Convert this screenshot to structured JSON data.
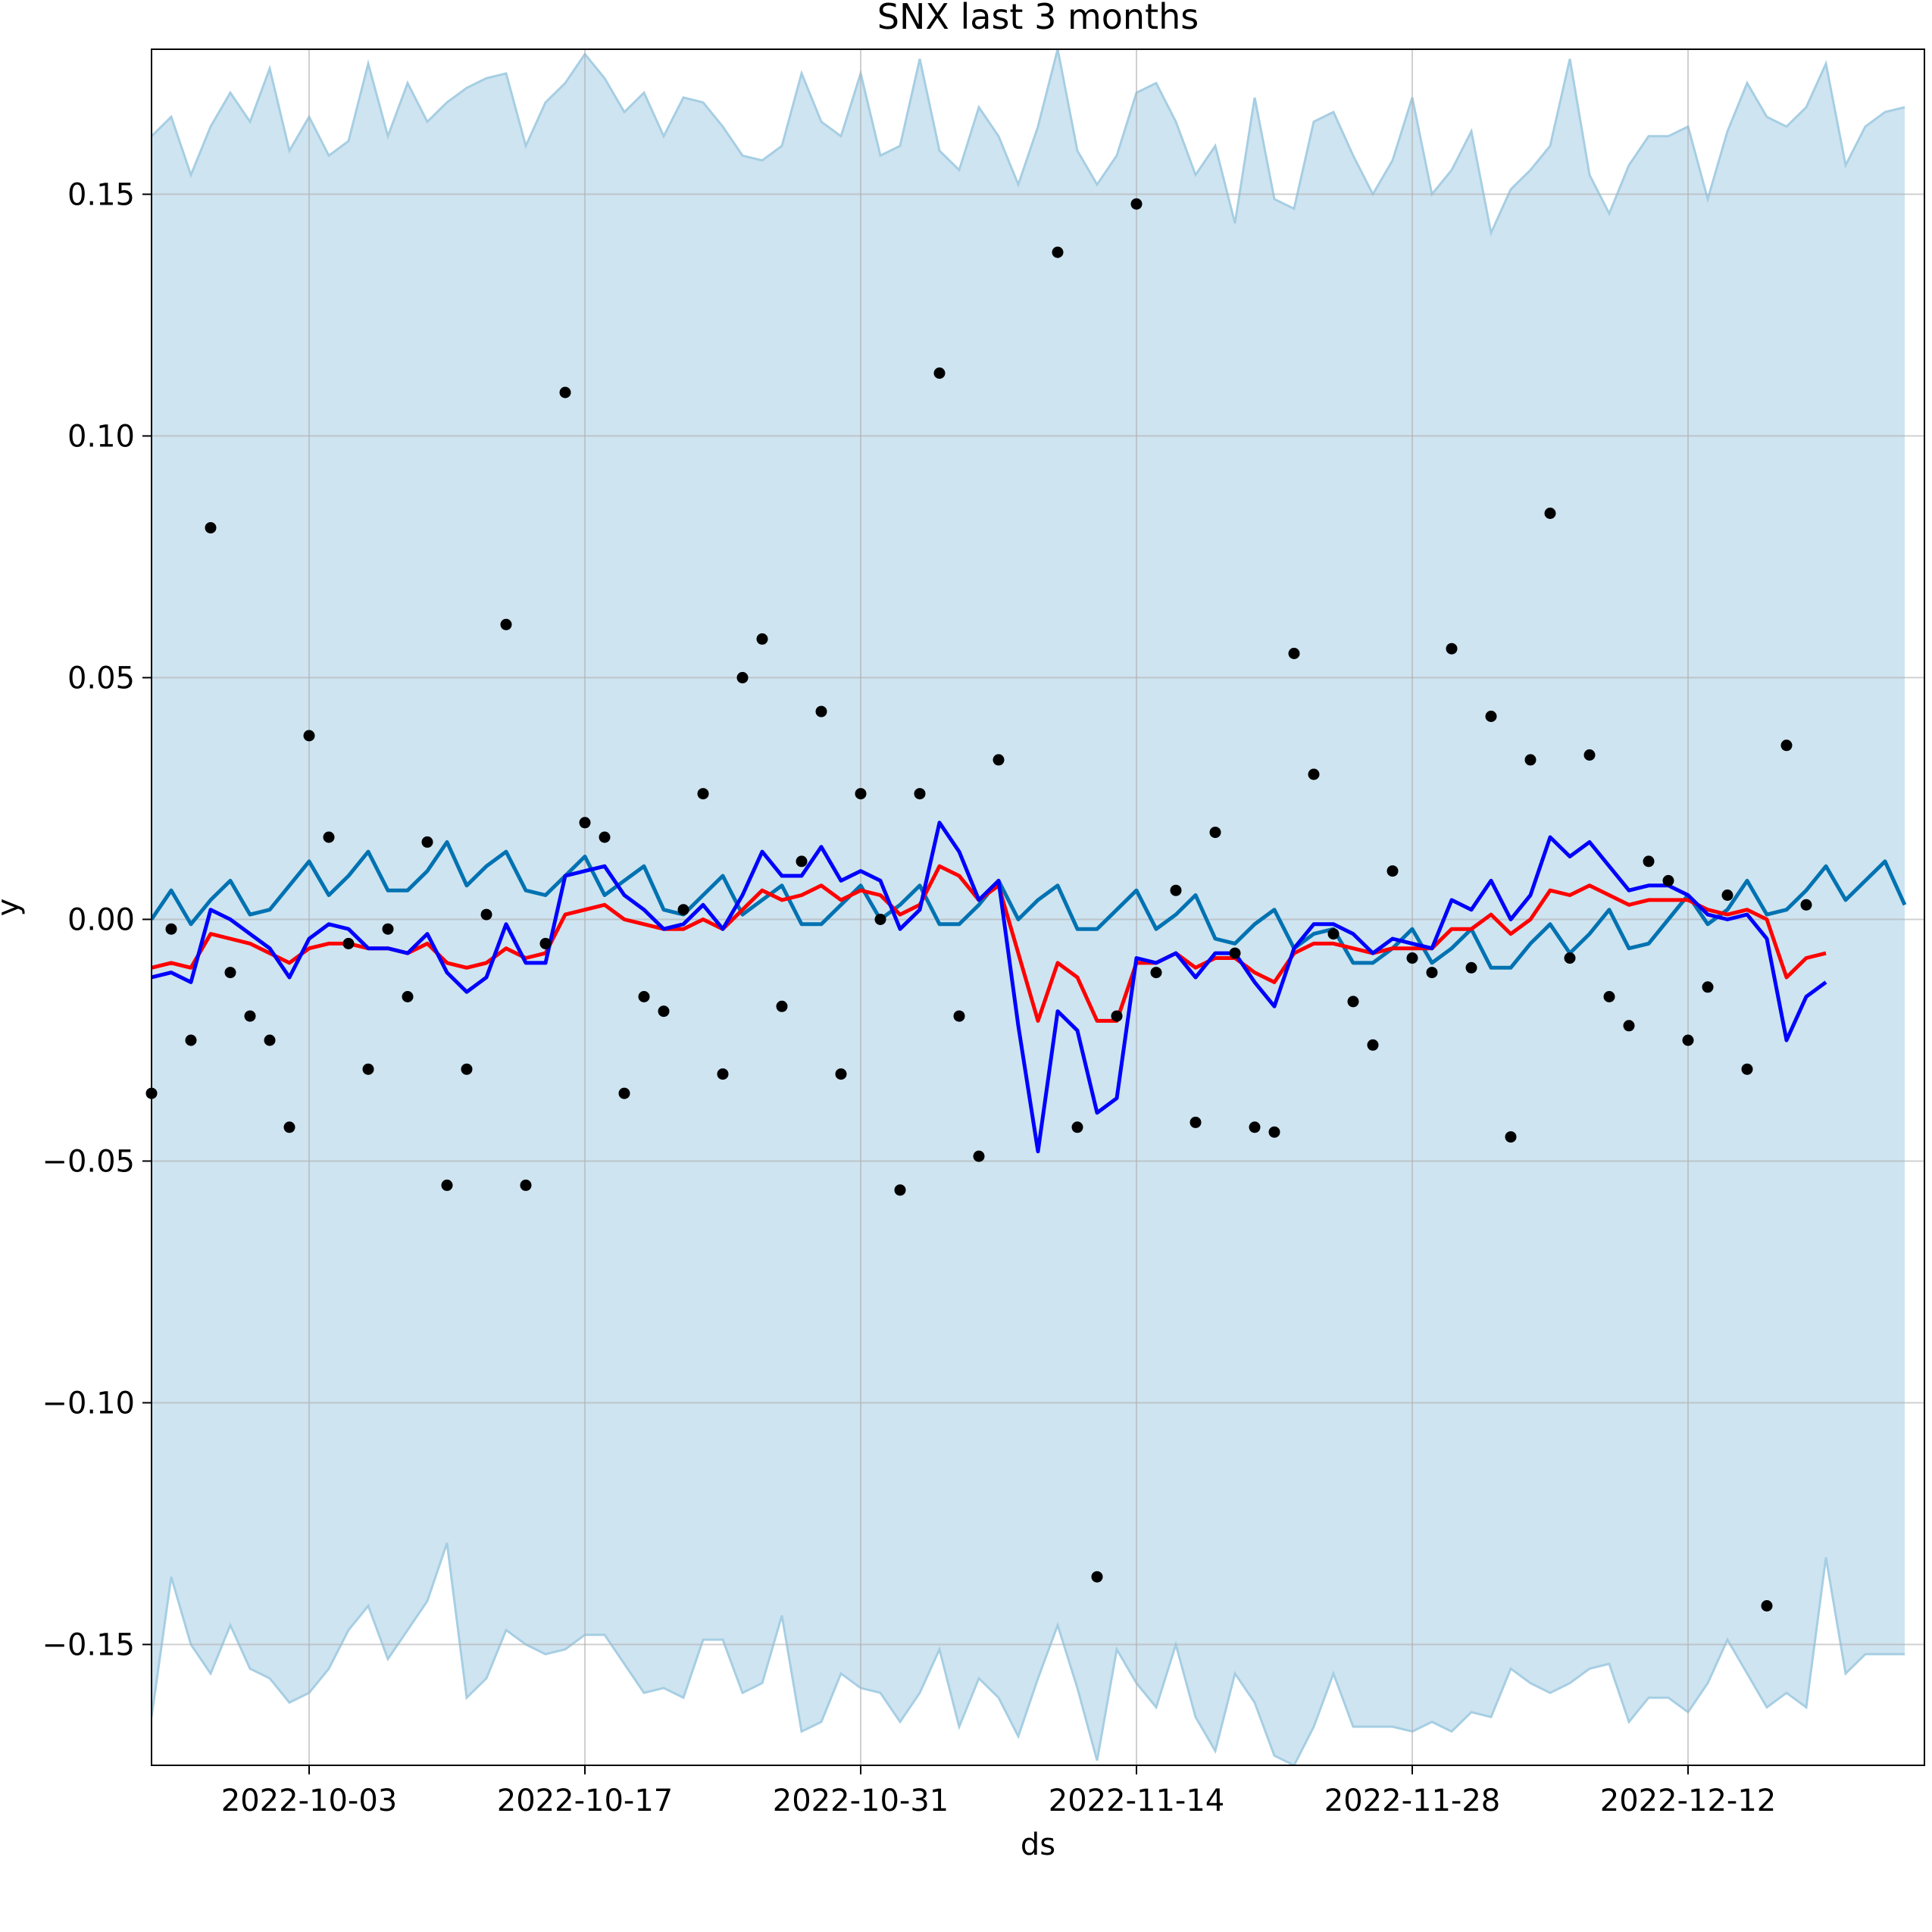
{
  "chart_data": {
    "type": "line",
    "title": "SNX last 3 months",
    "xlabel": "ds",
    "ylabel": "y",
    "x_start": "2022-09-25",
    "xlim": [
      "2022-09-25",
      "2022-12-24"
    ],
    "ylim": [
      -0.175,
      0.18
    ],
    "grid": true,
    "x_ticks": [
      "2022-10-03",
      "2022-10-17",
      "2022-10-31",
      "2022-11-14",
      "2022-11-28",
      "2022-12-12"
    ],
    "y_ticks": [
      0.15,
      0.1,
      0.05,
      0.0,
      -0.05,
      -0.1,
      -0.15
    ],
    "y_tick_labels": [
      "0.15",
      "0.10",
      "0.05",
      "0.00",
      "−0.05",
      "−0.10",
      "−0.15"
    ],
    "colors": {
      "band": "#a6cee3",
      "forecast": "#0072b2",
      "red_line": "#ff0000",
      "blue_line": "#0000ff",
      "points": "#000000",
      "grid": "#b0b0b0"
    },
    "band_upper": [
      0.162,
      0.166,
      0.154,
      0.164,
      0.171,
      0.165,
      0.176,
      0.159,
      0.166,
      0.158,
      0.161,
      0.177,
      0.162,
      0.173,
      0.165,
      0.169,
      0.172,
      0.174,
      0.175,
      0.16,
      0.169,
      0.173,
      0.179,
      0.174,
      0.167,
      0.171,
      0.162,
      0.17,
      0.169,
      0.164,
      0.158,
      0.157,
      0.16,
      0.175,
      0.165,
      0.162,
      0.175,
      0.158,
      0.16,
      0.178,
      0.159,
      0.155,
      0.168,
      0.162,
      0.152,
      0.164,
      0.18,
      0.159,
      0.152,
      0.158,
      0.171,
      0.173,
      0.165,
      0.154,
      0.16,
      0.144,
      0.17,
      0.149,
      0.147,
      0.165,
      0.167,
      0.158,
      0.15,
      0.157,
      0.17,
      0.15,
      0.155,
      0.163,
      0.142,
      0.151,
      0.155,
      0.16,
      0.178,
      0.154,
      0.146,
      0.156,
      0.162,
      0.162,
      0.164,
      0.149,
      0.163,
      0.173,
      0.166,
      0.164,
      0.168,
      0.177,
      0.156,
      0.164,
      0.167,
      0.168
    ],
    "band_lower": [
      -0.165,
      -0.136,
      -0.15,
      -0.156,
      -0.146,
      -0.155,
      -0.157,
      -0.162,
      -0.16,
      -0.155,
      -0.147,
      -0.142,
      -0.153,
      -0.147,
      -0.141,
      -0.129,
      -0.161,
      -0.157,
      -0.147,
      -0.15,
      -0.152,
      -0.151,
      -0.148,
      -0.148,
      -0.154,
      -0.16,
      -0.159,
      -0.161,
      -0.149,
      -0.149,
      -0.16,
      -0.158,
      -0.144,
      -0.168,
      -0.166,
      -0.156,
      -0.159,
      -0.16,
      -0.166,
      -0.16,
      -0.151,
      -0.167,
      -0.157,
      -0.161,
      -0.169,
      -0.157,
      -0.146,
      -0.159,
      -0.174,
      -0.151,
      -0.158,
      -0.163,
      -0.15,
      -0.165,
      -0.172,
      -0.156,
      -0.162,
      -0.173,
      -0.175,
      -0.167,
      -0.156,
      -0.167,
      -0.167,
      -0.167,
      -0.168,
      -0.166,
      -0.168,
      -0.164,
      -0.165,
      -0.155,
      -0.158,
      -0.16,
      -0.158,
      -0.155,
      -0.154,
      -0.166,
      -0.161,
      -0.161,
      -0.164,
      -0.158,
      -0.149,
      -0.156,
      -0.163,
      -0.16,
      -0.163,
      -0.132,
      -0.156,
      -0.152,
      -0.152,
      -0.152
    ],
    "forecast": [
      0.0,
      0.006,
      -0.001,
      0.004,
      0.008,
      0.001,
      0.002,
      0.007,
      0.012,
      0.005,
      0.009,
      0.014,
      0.006,
      0.006,
      0.01,
      0.016,
      0.007,
      0.011,
      0.014,
      0.006,
      0.005,
      0.009,
      0.013,
      0.005,
      0.008,
      0.011,
      0.002,
      0.001,
      0.005,
      0.009,
      0.001,
      0.004,
      0.007,
      -0.001,
      -0.001,
      0.003,
      0.007,
      0.0,
      0.003,
      0.007,
      -0.001,
      -0.001,
      0.003,
      0.008,
      0.0,
      0.004,
      0.007,
      -0.002,
      -0.002,
      0.002,
      0.006,
      -0.002,
      0.001,
      0.005,
      -0.004,
      -0.005,
      -0.001,
      0.002,
      -0.006,
      -0.003,
      -0.002,
      -0.009,
      -0.009,
      -0.006,
      -0.002,
      -0.009,
      -0.006,
      -0.002,
      -0.01,
      -0.01,
      -0.005,
      -0.001,
      -0.007,
      -0.003,
      0.002,
      -0.006,
      -0.005,
      0.0,
      0.005,
      -0.001,
      0.002,
      0.008,
      0.001,
      0.002,
      0.006,
      0.011,
      0.004,
      0.008,
      0.012,
      0.003
    ],
    "red_line": [
      -0.01,
      -0.009,
      -0.01,
      -0.003,
      -0.004,
      -0.005,
      -0.007,
      -0.009,
      -0.006,
      -0.005,
      -0.005,
      -0.006,
      -0.006,
      -0.007,
      -0.005,
      -0.009,
      -0.01,
      -0.009,
      -0.006,
      -0.008,
      -0.007,
      0.001,
      0.002,
      0.003,
      0.0,
      -0.001,
      -0.002,
      -0.002,
      0.0,
      -0.002,
      0.002,
      0.006,
      0.004,
      0.005,
      0.007,
      0.004,
      0.006,
      0.005,
      0.001,
      0.003,
      0.011,
      0.009,
      0.004,
      0.007,
      -0.007,
      -0.021,
      -0.009,
      -0.012,
      -0.021,
      -0.021,
      -0.009,
      -0.009,
      -0.007,
      -0.01,
      -0.008,
      -0.008,
      -0.011,
      -0.013,
      -0.007,
      -0.005,
      -0.005,
      -0.006,
      -0.007,
      -0.006,
      -0.006,
      -0.006,
      -0.002,
      -0.002,
      0.001,
      -0.003,
      0.0,
      0.006,
      0.005,
      0.007,
      0.005,
      0.003,
      0.004,
      0.004,
      0.004,
      0.002,
      0.001,
      0.002,
      0.0,
      -0.012,
      -0.008,
      -0.007
    ],
    "blue_line": [
      -0.012,
      -0.011,
      -0.013,
      0.002,
      0.0,
      -0.003,
      -0.006,
      -0.012,
      -0.004,
      -0.001,
      -0.002,
      -0.006,
      -0.006,
      -0.007,
      -0.003,
      -0.011,
      -0.015,
      -0.012,
      -0.001,
      -0.009,
      -0.009,
      0.009,
      0.01,
      0.011,
      0.005,
      0.002,
      -0.002,
      -0.001,
      0.003,
      -0.002,
      0.005,
      0.014,
      0.009,
      0.009,
      0.015,
      0.008,
      0.01,
      0.008,
      -0.002,
      0.002,
      0.02,
      0.014,
      0.004,
      0.008,
      -0.022,
      -0.048,
      -0.019,
      -0.023,
      -0.04,
      -0.037,
      -0.008,
      -0.009,
      -0.007,
      -0.012,
      -0.007,
      -0.007,
      -0.013,
      -0.018,
      -0.006,
      -0.001,
      -0.001,
      -0.003,
      -0.007,
      -0.004,
      -0.005,
      -0.006,
      0.004,
      0.002,
      0.008,
      0.0,
      0.005,
      0.017,
      0.013,
      0.016,
      0.011,
      0.006,
      0.007,
      0.007,
      0.005,
      0.001,
      0.0,
      0.001,
      -0.004,
      -0.025,
      -0.016,
      -0.013
    ],
    "points": [
      [
        0,
        -0.036
      ],
      [
        1,
        -0.002
      ],
      [
        2,
        -0.025
      ],
      [
        3,
        0.081
      ],
      [
        4,
        -0.011
      ],
      [
        5,
        -0.02
      ],
      [
        6,
        -0.025
      ],
      [
        7,
        -0.043
      ],
      [
        8,
        0.038
      ],
      [
        9,
        0.017
      ],
      [
        10,
        -0.005
      ],
      [
        11,
        -0.031
      ],
      [
        12,
        -0.002
      ],
      [
        13,
        -0.016
      ],
      [
        14,
        0.016
      ],
      [
        15,
        -0.055
      ],
      [
        16,
        -0.031
      ],
      [
        17,
        0.001
      ],
      [
        18,
        0.061
      ],
      [
        19,
        -0.055
      ],
      [
        20,
        -0.005
      ],
      [
        21,
        0.109
      ],
      [
        22,
        0.02
      ],
      [
        23,
        0.017
      ],
      [
        24,
        -0.036
      ],
      [
        25,
        -0.016
      ],
      [
        26,
        -0.019
      ],
      [
        27,
        0.002
      ],
      [
        28,
        0.026
      ],
      [
        29,
        -0.032
      ],
      [
        30,
        0.05
      ],
      [
        31,
        0.058
      ],
      [
        32,
        -0.018
      ],
      [
        33,
        0.012
      ],
      [
        34,
        0.043
      ],
      [
        35,
        -0.032
      ],
      [
        36,
        0.026
      ],
      [
        37,
        0.0
      ],
      [
        38,
        -0.056
      ],
      [
        39,
        0.026
      ],
      [
        40,
        0.113
      ],
      [
        41,
        -0.02
      ],
      [
        42,
        -0.049
      ],
      [
        43,
        0.033
      ],
      [
        46,
        0.138
      ],
      [
        47,
        -0.043
      ],
      [
        48,
        -0.136
      ],
      [
        49,
        -0.02
      ],
      [
        50,
        0.148
      ],
      [
        51,
        -0.011
      ],
      [
        52,
        0.006
      ],
      [
        53,
        -0.042
      ],
      [
        54,
        0.018
      ],
      [
        55,
        -0.007
      ],
      [
        56,
        -0.043
      ],
      [
        57,
        -0.044
      ],
      [
        58,
        0.055
      ],
      [
        59,
        0.03
      ],
      [
        60,
        -0.003
      ],
      [
        61,
        -0.017
      ],
      [
        62,
        -0.026
      ],
      [
        63,
        0.01
      ],
      [
        64,
        -0.008
      ],
      [
        65,
        -0.011
      ],
      [
        66,
        0.056
      ],
      [
        67,
        -0.01
      ],
      [
        68,
        0.042
      ],
      [
        69,
        -0.045
      ],
      [
        70,
        0.033
      ],
      [
        71,
        0.084
      ],
      [
        72,
        -0.008
      ],
      [
        73,
        0.034
      ],
      [
        74,
        -0.016
      ],
      [
        75,
        -0.022
      ],
      [
        76,
        0.012
      ],
      [
        77,
        0.008
      ],
      [
        78,
        -0.025
      ],
      [
        79,
        -0.014
      ],
      [
        80,
        0.005
      ],
      [
        81,
        -0.031
      ],
      [
        82,
        -0.142
      ],
      [
        83,
        0.036
      ],
      [
        84,
        0.003
      ]
    ]
  }
}
